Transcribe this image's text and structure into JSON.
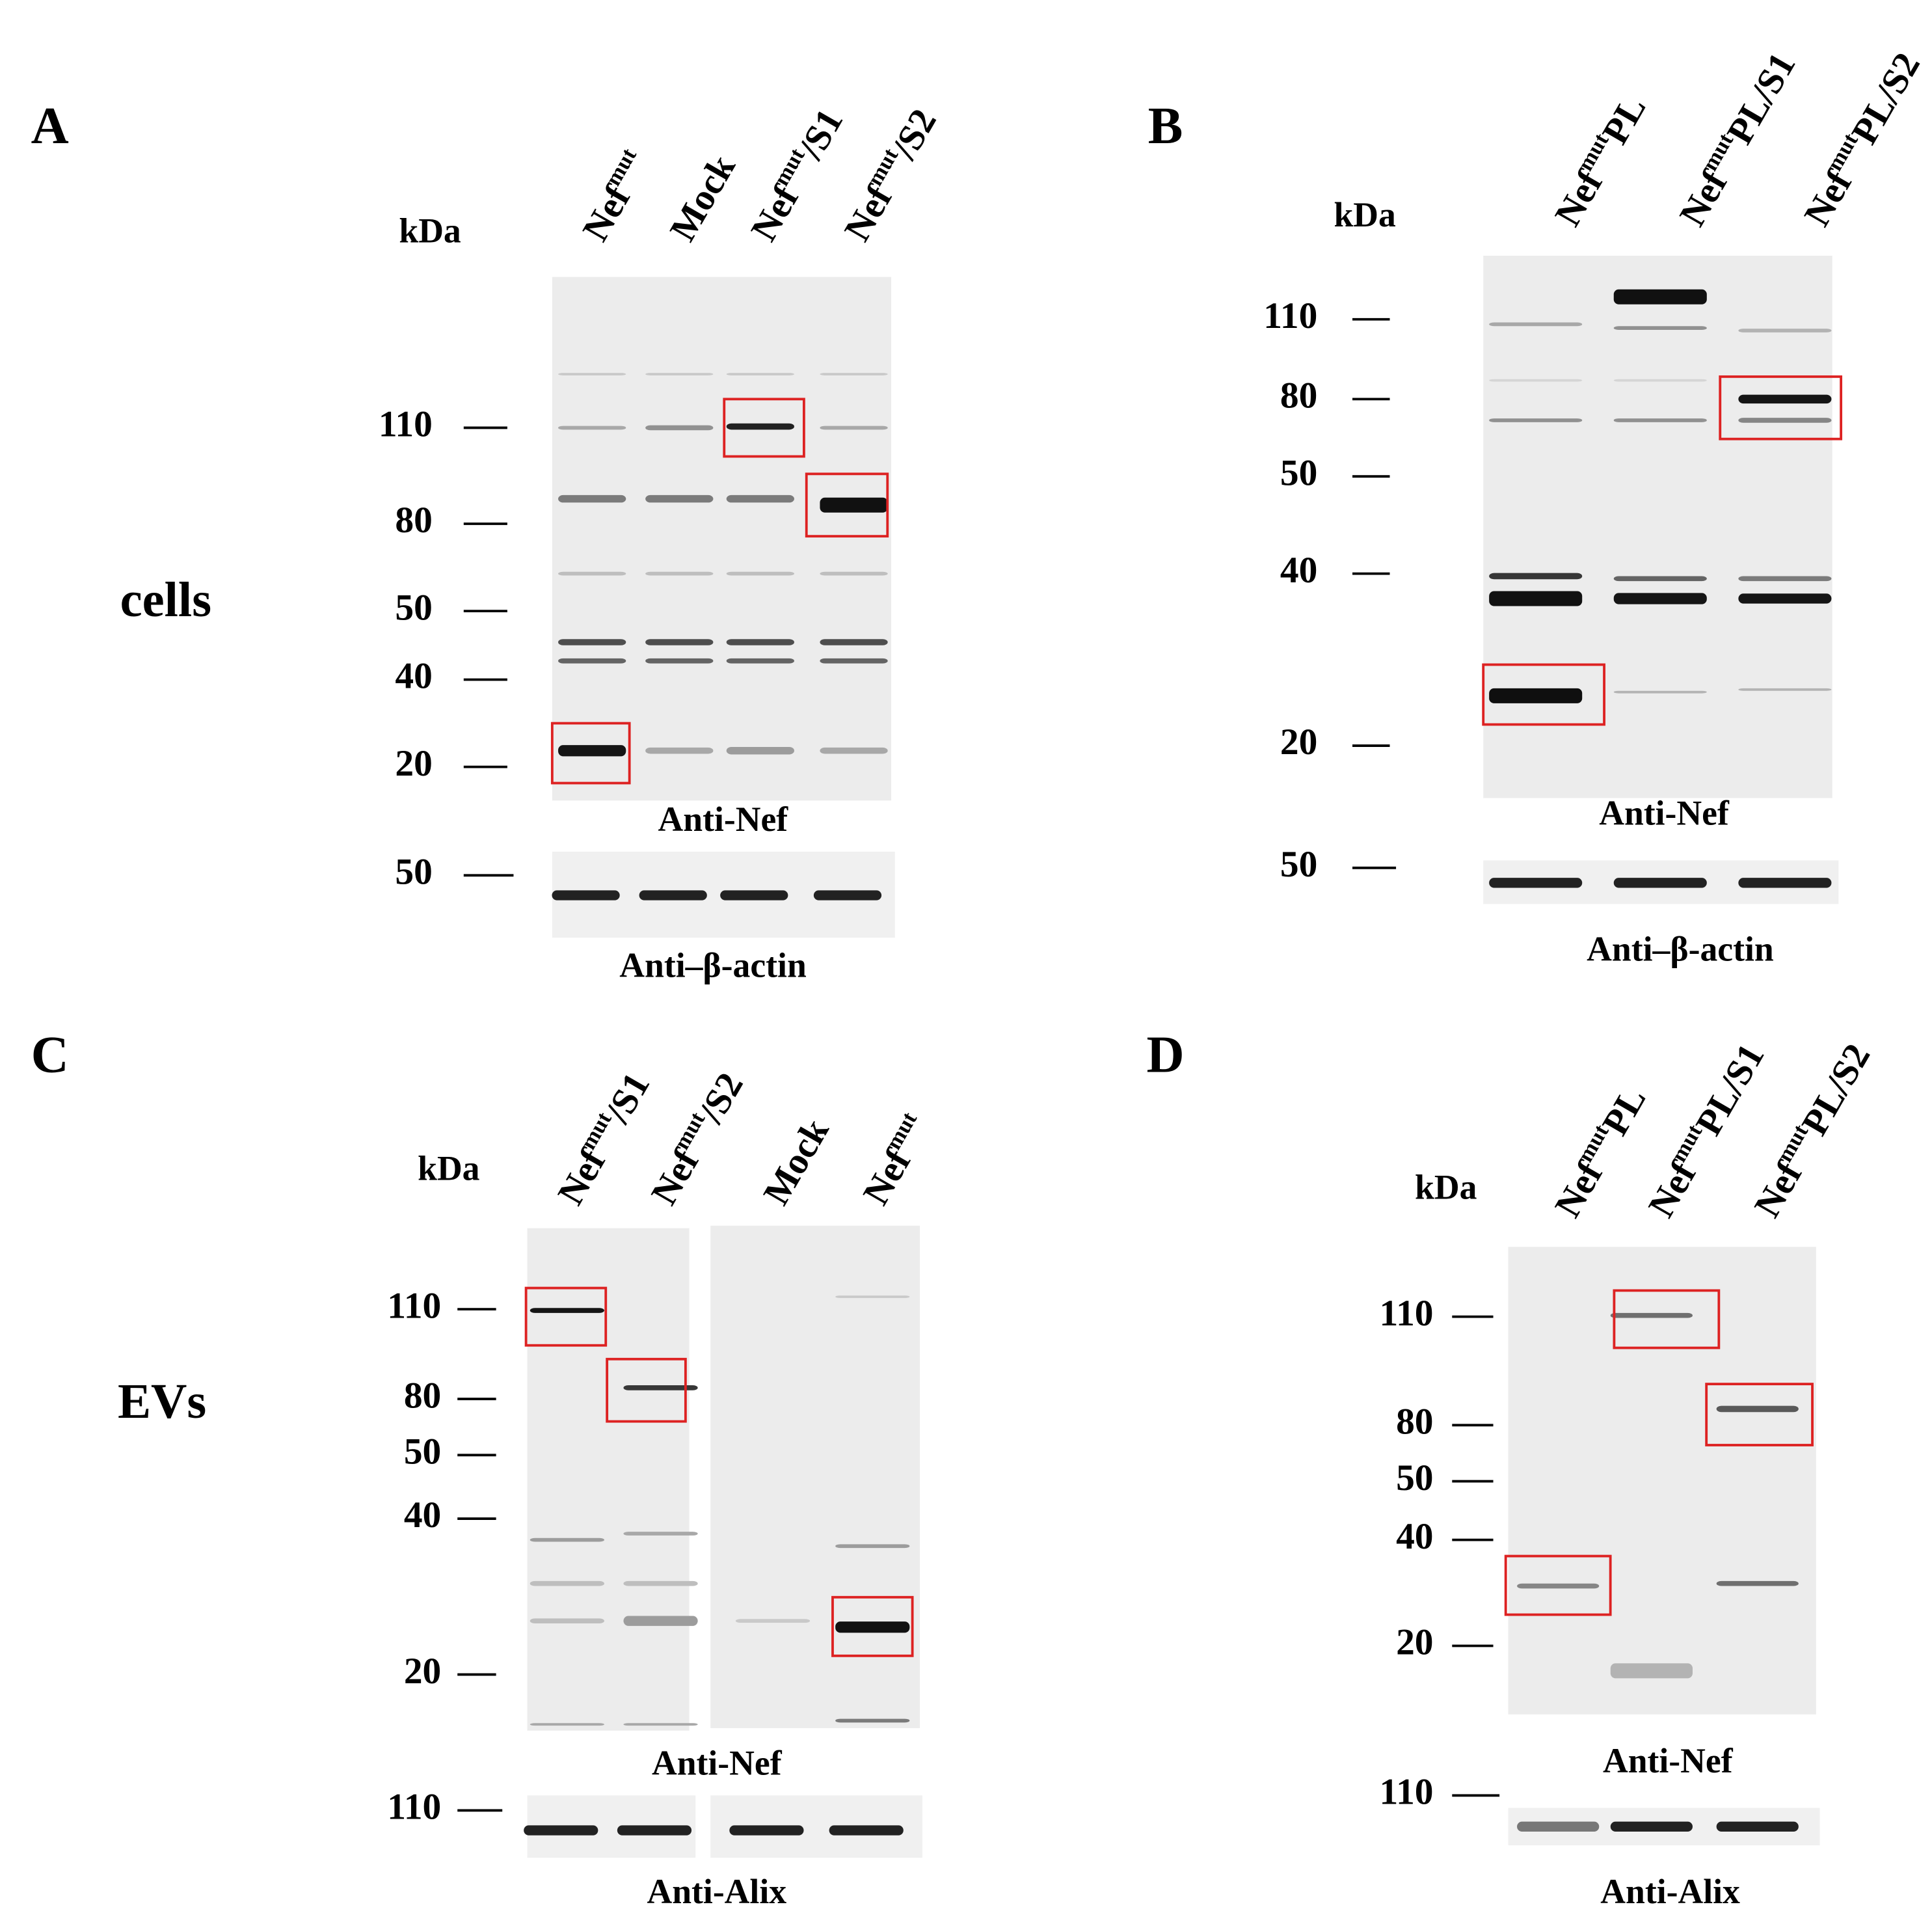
{
  "row_labels": [
    "cells",
    "EVs"
  ],
  "panels": [
    {
      "label": "A",
      "unit": "kDa",
      "lanes": [
        {
          "text": "Nef",
          "sup": "mut"
        },
        {
          "text": "Mock"
        },
        {
          "text": "Nef",
          "sup": "mut",
          "tail": "/S1"
        },
        {
          "text": "Nef",
          "sup": "mut",
          "tail": "/S2"
        }
      ],
      "markers": [
        110,
        80,
        50,
        40,
        20
      ],
      "antibody": "Anti-Nef",
      "loading_markers": [
        50
      ],
      "loading_antibody": "Anti–β-actin"
    },
    {
      "label": "B",
      "unit": "kDa",
      "lanes": [
        {
          "text": "Nef",
          "sup": "mut",
          "tail": "PL"
        },
        {
          "text": "Nef",
          "sup": "mut",
          "tail": "PL/S1"
        },
        {
          "text": "Nef",
          "sup": "mut",
          "tail": "PL/S2"
        }
      ],
      "markers": [
        110,
        80,
        50,
        40,
        20
      ],
      "antibody": "Anti-Nef",
      "loading_markers": [
        50
      ],
      "loading_antibody": "Anti–β-actin"
    },
    {
      "label": "C",
      "unit": "kDa",
      "lanes": [
        {
          "text": "Nef",
          "sup": "mut",
          "tail": "/S1"
        },
        {
          "text": "Nef",
          "sup": "mut",
          "tail": "/S2"
        },
        {
          "text": "Mock"
        },
        {
          "text": "Nef",
          "sup": "mut"
        }
      ],
      "markers": [
        110,
        80,
        50,
        40,
        20
      ],
      "antibody": "Anti-Nef",
      "loading_markers": [
        110
      ],
      "loading_antibody": "Anti-Alix"
    },
    {
      "label": "D",
      "unit": "kDa",
      "lanes": [
        {
          "text": "Nef",
          "sup": "mut",
          "tail": "PL"
        },
        {
          "text": "Nef",
          "sup": "mut",
          "tail": "PL/S1"
        },
        {
          "text": "Nef",
          "sup": "mut",
          "tail": "PL/S2"
        }
      ],
      "markers": [
        110,
        80,
        50,
        40,
        20
      ],
      "antibody": "Anti-Nef",
      "loading_markers": [
        110
      ],
      "loading_antibody": "Anti-Alix"
    }
  ]
}
